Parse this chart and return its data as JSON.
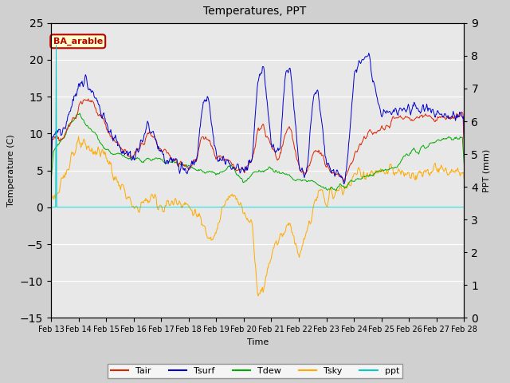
{
  "title": "Temperatures, PPT",
  "xlabel": "Time",
  "ylabel_left": "Temperature (C)",
  "ylabel_right": "PPT (mm)",
  "ylim_left": [
    -15,
    25
  ],
  "ylim_right": [
    0.0,
    9.0
  ],
  "yticks_left": [
    -15,
    -10,
    -5,
    0,
    5,
    10,
    15,
    20,
    25
  ],
  "yticks_right": [
    0.0,
    1.0,
    2.0,
    3.0,
    4.0,
    5.0,
    6.0,
    7.0,
    8.0,
    9.0
  ],
  "xtick_labels": [
    "Feb 13",
    "Feb 14",
    "Feb 15",
    "Feb 16",
    "Feb 17",
    "Feb 18",
    "Feb 19",
    "Feb 20",
    "Feb 21",
    "Feb 22",
    "Feb 23",
    "Feb 24",
    "Feb 25",
    "Feb 26",
    "Feb 27",
    "Feb 28"
  ],
  "annotation_text": "BA_arable",
  "annotation_color": "#bb0000",
  "colors": {
    "Tair": "#dd2200",
    "Tsurf": "#0000cc",
    "Tdew": "#00aa00",
    "Tsky": "#ffaa00",
    "ppt": "#00cccc"
  },
  "figsize": [
    6.4,
    4.8
  ],
  "dpi": 100,
  "fig_facecolor": "#d0d0d0",
  "ax_facecolor": "#e8e8e8",
  "grid_color": "#ffffff"
}
